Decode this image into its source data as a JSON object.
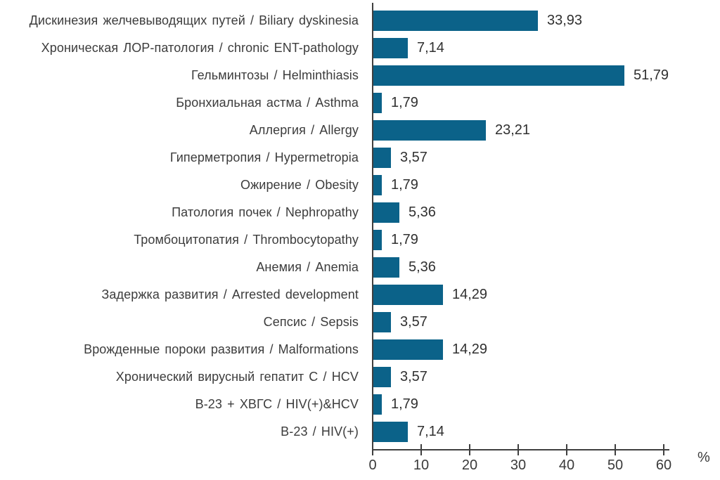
{
  "chart_data": {
    "type": "bar",
    "orientation": "horizontal",
    "title": "",
    "categories": [
      "Дискинезия желчевыводящих путей / Biliary dyskinesia",
      "Хроническая ЛОР-патология / chronic ENT-pathology",
      "Гельминтозы / Helminthiasis",
      "Бронхиальная астма / Asthma",
      "Аллергия / Allergy",
      "Гиперметропия / Hypermetropia",
      "Ожирение / Obesity",
      "Патология почек / Nephropathy",
      "Тромбоцитопатия / Thrombocytopathy",
      "Анемия / Anemia",
      "Задержка развития / Arrested development",
      "Сепсис / Sepsis",
      "Врожденные пороки развития / Malformations",
      "Хронический вирусный гепатит С / HCV",
      "В-23 + ХВГС / HIV(+)&HCV",
      "В-23 / HIV(+)"
    ],
    "values": [
      33.93,
      7.14,
      51.79,
      1.79,
      23.21,
      3.57,
      1.79,
      5.36,
      1.79,
      5.36,
      14.29,
      3.57,
      14.29,
      3.57,
      1.79,
      7.14
    ],
    "value_labels": [
      "33,93",
      "7,14",
      "51,79",
      "1,79",
      "23,21",
      "3,57",
      "1,79",
      "5,36",
      "1,79",
      "5,36",
      "14,29",
      "3,57",
      "14,29",
      "3,57",
      "1,79",
      "7,14"
    ],
    "bar_color": "#0b6289",
    "axis": {
      "xlim": [
        0,
        60
      ],
      "ticks": [
        0,
        10,
        20,
        30,
        40,
        50,
        60
      ],
      "tick_labels": [
        "0",
        "10",
        "20",
        "30",
        "40",
        "50",
        "60"
      ],
      "unit_label": "%",
      "grid": false
    },
    "legend_position": "none"
  }
}
